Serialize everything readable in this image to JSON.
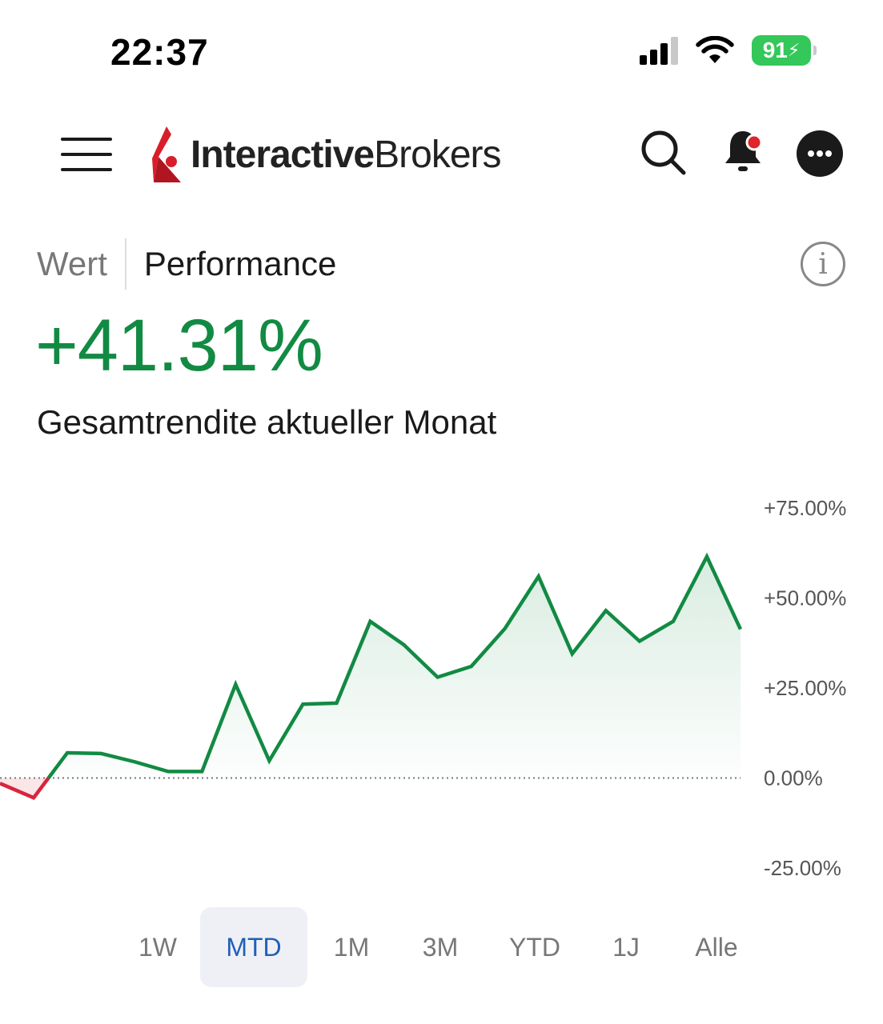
{
  "status_bar": {
    "time": "22:37",
    "battery": "91",
    "icons": [
      "cellular-signal-icon",
      "wifi-icon",
      "battery-charging-icon"
    ]
  },
  "header": {
    "logo": {
      "part1": "Interactive",
      "part2": "Brokers"
    },
    "icons": [
      "menu-icon",
      "search-icon",
      "bell-icon",
      "more-icon",
      "info-icon"
    ],
    "notification_dot_color": "#e0242b"
  },
  "tabs": [
    {
      "label": "Wert",
      "active": false
    },
    {
      "label": "Performance",
      "active": true
    }
  ],
  "performance": {
    "value": "+41.31%",
    "subtitle": "Gesamtrendite aktueller Monat"
  },
  "colors": {
    "positive": "#128a43",
    "negative": "#d7263d",
    "active_range_bg": "#eef0f5",
    "active_range_text": "#1f5fb7"
  },
  "chart_data": {
    "type": "area",
    "title": "",
    "xlabel": "",
    "ylabel": "",
    "ylim": [
      -25,
      75
    ],
    "yticks": [
      "+75.00%",
      "+50.00%",
      "+25.00%",
      "0.00%",
      "-25.00%"
    ],
    "y_axis_side": "right",
    "baseline": 0,
    "baseline_style": "dotted",
    "grid": false,
    "legend": "none",
    "series": [
      {
        "values": [
          -1.5,
          -5.5,
          7,
          6.8,
          4.5,
          1.8,
          1.8,
          26,
          4.8,
          20.5,
          20.8,
          43.5,
          37,
          28,
          31,
          41.5,
          56,
          34.5,
          46.5,
          38,
          43.5,
          61.5,
          41.31
        ]
      }
    ]
  },
  "ranges": [
    {
      "label": "1W",
      "active": false
    },
    {
      "label": "MTD",
      "active": true
    },
    {
      "label": "1M",
      "active": false
    },
    {
      "label": "3M",
      "active": false
    },
    {
      "label": "YTD",
      "active": false
    },
    {
      "label": "1J",
      "active": false
    },
    {
      "label": "Alle",
      "active": false
    }
  ]
}
